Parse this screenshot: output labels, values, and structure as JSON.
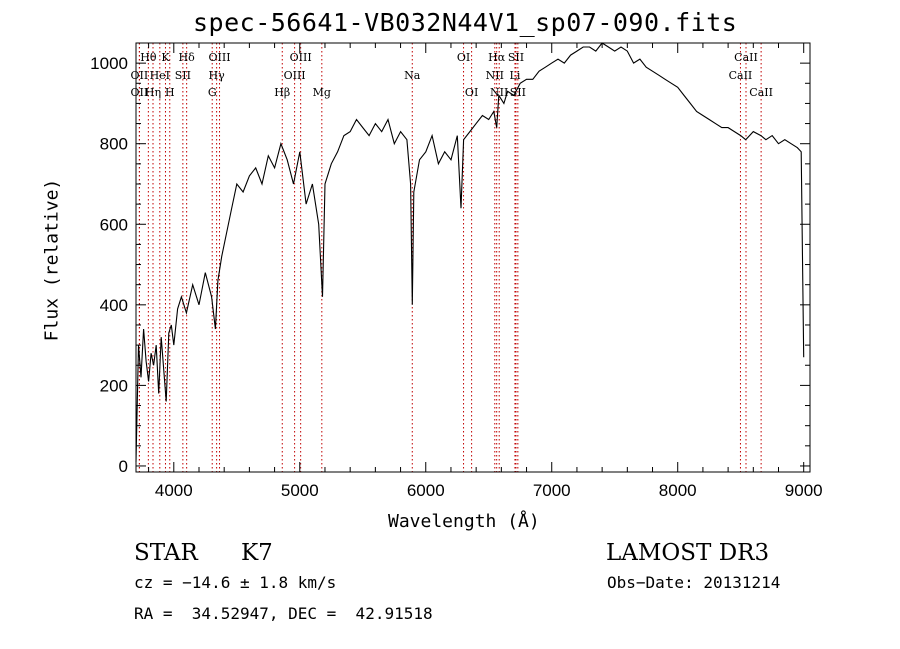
{
  "chart_data": {
    "type": "line",
    "title": "spec-56641-VB032N44V1_sp07-090.fits",
    "xlabel": "Wavelength (Å)",
    "ylabel": "Flux (relative)",
    "xlim": [
      3700,
      9050
    ],
    "ylim": [
      -15,
      1050
    ],
    "xticks": [
      4000,
      5000,
      6000,
      7000,
      8000,
      9000
    ],
    "yticks": [
      0,
      200,
      400,
      600,
      800,
      1000
    ],
    "series": [
      {
        "name": "flux",
        "x": [
          3700,
          3720,
          3740,
          3760,
          3780,
          3800,
          3820,
          3840,
          3860,
          3880,
          3900,
          3920,
          3940,
          3960,
          3980,
          4000,
          4030,
          4060,
          4100,
          4150,
          4200,
          4250,
          4300,
          4330,
          4350,
          4380,
          4420,
          4460,
          4500,
          4550,
          4600,
          4650,
          4700,
          4750,
          4800,
          4850,
          4900,
          4950,
          5000,
          5050,
          5100,
          5150,
          5180,
          5200,
          5250,
          5300,
          5350,
          5400,
          5450,
          5500,
          5550,
          5600,
          5650,
          5700,
          5750,
          5800,
          5850,
          5880,
          5893,
          5905,
          5950,
          6000,
          6050,
          6100,
          6150,
          6200,
          6250,
          6280,
          6300,
          6350,
          6400,
          6450,
          6500,
          6540,
          6563,
          6580,
          6620,
          6650,
          6700,
          6750,
          6800,
          6850,
          6900,
          6950,
          7000,
          7050,
          7100,
          7150,
          7200,
          7250,
          7300,
          7350,
          7400,
          7450,
          7500,
          7550,
          7600,
          7650,
          7700,
          7750,
          7800,
          7850,
          7900,
          7950,
          8000,
          8050,
          8100,
          8150,
          8200,
          8250,
          8300,
          8350,
          8400,
          8450,
          8500,
          8540,
          8600,
          8660,
          8700,
          8750,
          8800,
          8850,
          8900,
          8950,
          8980,
          9000
        ],
        "values": [
          10,
          300,
          220,
          340,
          260,
          210,
          280,
          250,
          300,
          180,
          320,
          240,
          160,
          330,
          350,
          300,
          390,
          420,
          380,
          450,
          400,
          480,
          420,
          340,
          460,
          520,
          580,
          640,
          700,
          680,
          720,
          740,
          700,
          770,
          740,
          800,
          760,
          700,
          780,
          650,
          700,
          600,
          420,
          700,
          750,
          780,
          820,
          830,
          860,
          840,
          820,
          850,
          830,
          860,
          800,
          830,
          810,
          700,
          400,
          680,
          760,
          780,
          820,
          750,
          780,
          760,
          820,
          640,
          810,
          830,
          850,
          870,
          860,
          880,
          840,
          920,
          900,
          930,
          920,
          950,
          960,
          960,
          980,
          990,
          1000,
          1010,
          1000,
          1020,
          1030,
          1040,
          1040,
          1030,
          1050,
          1040,
          1030,
          1040,
          1030,
          1000,
          1010,
          990,
          980,
          970,
          960,
          950,
          940,
          920,
          900,
          880,
          870,
          860,
          850,
          840,
          840,
          830,
          820,
          810,
          830,
          820,
          810,
          820,
          800,
          810,
          800,
          790,
          780,
          270
        ]
      }
    ],
    "line_ids": [
      {
        "label": "Hθ",
        "x": 3798,
        "row": 0
      },
      {
        "label": "OII",
        "x": 3727,
        "row": 1
      },
      {
        "label": "OII",
        "x": 3727,
        "row": 2
      },
      {
        "label": "Hη",
        "x": 3835,
        "row": 2
      },
      {
        "label": "K",
        "x": 3934,
        "row": 0
      },
      {
        "label": "HeI",
        "x": 3889,
        "row": 1
      },
      {
        "label": "H",
        "x": 3968,
        "row": 2
      },
      {
        "label": "SII",
        "x": 4072,
        "row": 1
      },
      {
        "label": "Hδ",
        "x": 4102,
        "row": 0
      },
      {
        "label": "OIII",
        "x": 4363,
        "row": 0
      },
      {
        "label": "Hγ",
        "x": 4340,
        "row": 1
      },
      {
        "label": "G",
        "x": 4305,
        "row": 2
      },
      {
        "label": "Hβ",
        "x": 4861,
        "row": 2
      },
      {
        "label": "OIII",
        "x": 5007,
        "row": 0
      },
      {
        "label": "OIII",
        "x": 4959,
        "row": 1
      },
      {
        "label": "Mg",
        "x": 5175,
        "row": 2
      },
      {
        "label": "Na",
        "x": 5893,
        "row": 1
      },
      {
        "label": "OI",
        "x": 6300,
        "row": 0
      },
      {
        "label": "OI",
        "x": 6364,
        "row": 2
      },
      {
        "label": "Hα",
        "x": 6563,
        "row": 0
      },
      {
        "label": "SII",
        "x": 6716,
        "row": 0
      },
      {
        "label": "NII",
        "x": 6548,
        "row": 1
      },
      {
        "label": "Li",
        "x": 6708,
        "row": 1
      },
      {
        "label": "NII",
        "x": 6583,
        "row": 2
      },
      {
        "label": "SII",
        "x": 6731,
        "row": 2
      },
      {
        "label": "CaII",
        "x": 8542,
        "row": 0
      },
      {
        "label": "CaII",
        "x": 8498,
        "row": 1
      },
      {
        "label": "CaII",
        "x": 8662,
        "row": 2
      }
    ]
  },
  "info": {
    "object_class": "STAR",
    "subclass": "K7",
    "survey": "LAMOST DR3",
    "cz": "cz = −14.6 ± 1.8 km/s",
    "obs_date": "Obs−Date: 20131214",
    "coords": "RA =  34.52947, DEC =  42.91518"
  }
}
